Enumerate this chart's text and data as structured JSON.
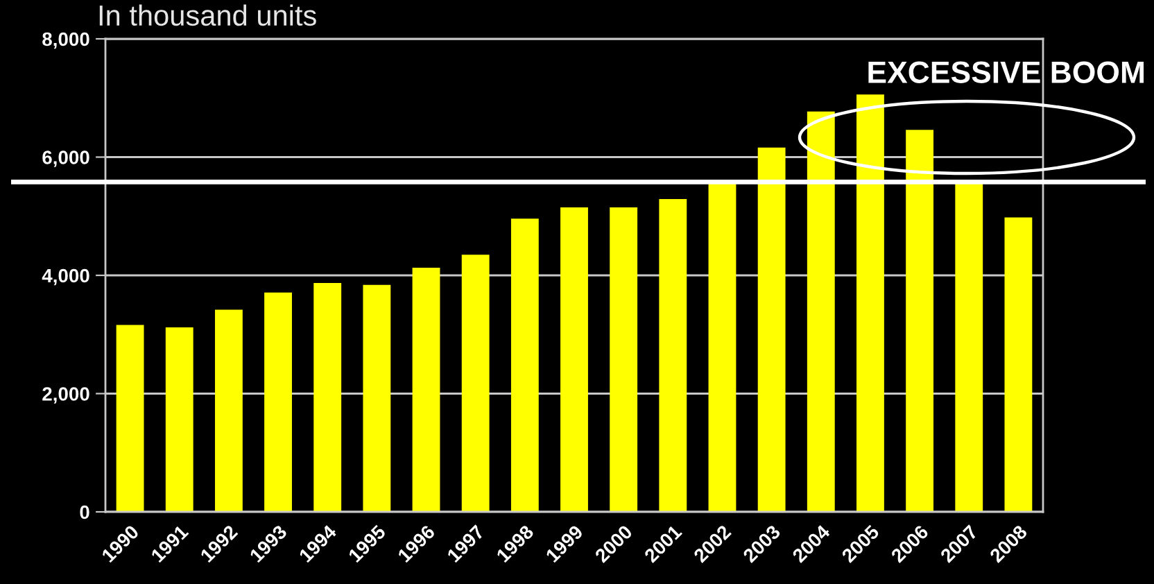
{
  "chart_data": {
    "type": "bar",
    "ylabel": "In thousand units",
    "categories": [
      "1990",
      "1991",
      "1992",
      "1993",
      "1994",
      "1995",
      "1996",
      "1997",
      "1998",
      "1999",
      "2000",
      "2001",
      "2002",
      "2003",
      "2004",
      "2005",
      "2006",
      "2007",
      "2008"
    ],
    "values": [
      3160,
      3120,
      3420,
      3710,
      3870,
      3840,
      4130,
      4350,
      4960,
      5150,
      5150,
      5290,
      5550,
      6160,
      6770,
      7060,
      6460,
      5550,
      4980
    ],
    "color": "#ffff00",
    "ylim": [
      0,
      8000
    ],
    "yticks": [
      0,
      {
        "value": 2000,
        "label": "2,000"
      },
      {
        "value": 4000,
        "label": "4,000"
      },
      {
        "value": 6000,
        "label": "6,000"
      },
      {
        "value": 8000,
        "label": "8,000"
      }
    ],
    "grid": "y",
    "ref_lines": [
      {
        "axis": "y",
        "value": 5580,
        "color": "#ffffff"
      }
    ],
    "annotations": [
      "EXCESSIVE BOOM"
    ]
  }
}
